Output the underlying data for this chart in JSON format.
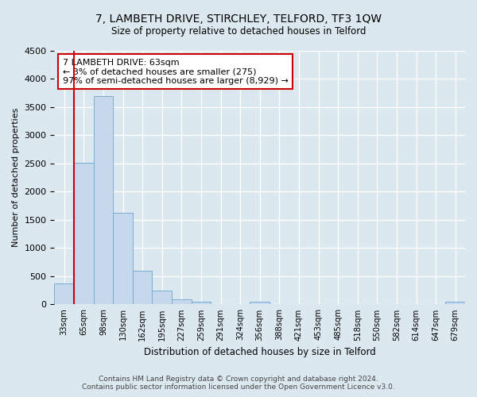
{
  "title": "7, LAMBETH DRIVE, STIRCHLEY, TELFORD, TF3 1QW",
  "subtitle": "Size of property relative to detached houses in Telford",
  "xlabel": "Distribution of detached houses by size in Telford",
  "ylabel": "Number of detached properties",
  "bar_labels": [
    "33sqm",
    "65sqm",
    "98sqm",
    "130sqm",
    "162sqm",
    "195sqm",
    "227sqm",
    "259sqm",
    "291sqm",
    "324sqm",
    "356sqm",
    "388sqm",
    "421sqm",
    "453sqm",
    "485sqm",
    "518sqm",
    "550sqm",
    "582sqm",
    "614sqm",
    "647sqm",
    "679sqm"
  ],
  "bar_values": [
    375,
    2520,
    3700,
    1625,
    600,
    240,
    95,
    50,
    0,
    0,
    50,
    0,
    0,
    0,
    0,
    0,
    0,
    0,
    0,
    0,
    50
  ],
  "bar_color": "#c6d9ec",
  "bar_edge_color": "#7aadd4",
  "vline_color": "#cc0000",
  "annotation_text": "7 LAMBETH DRIVE: 63sqm\n← 3% of detached houses are smaller (275)\n97% of semi-detached houses are larger (8,929) →",
  "annotation_box_color": "#ffffff",
  "annotation_box_edge_color": "#cc0000",
  "ylim": [
    0,
    4500
  ],
  "background_color": "#dce8f0",
  "plot_bg_color": "#dce8f0",
  "grid_color": "#ffffff",
  "footer_line1": "Contains HM Land Registry data © Crown copyright and database right 2024.",
  "footer_line2": "Contains public sector information licensed under the Open Government Licence v3.0."
}
